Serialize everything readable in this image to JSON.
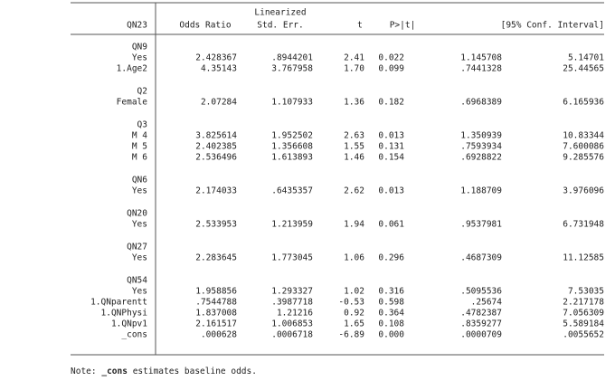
{
  "table": {
    "header": {
      "top": [
        "",
        "",
        "Linearized",
        "",
        "",
        "",
        ""
      ],
      "columns": [
        "QN23",
        "Odds Ratio",
        "Std. Err.",
        "t",
        "P>|t|",
        "[95% Conf. Interval]"
      ]
    },
    "groups": [
      {
        "label": "QN9",
        "rows": [
          [
            "Yes",
            "2.428367",
            ".8944201",
            "2.41",
            "0.022",
            "1.145708",
            "5.14701"
          ],
          [
            "1.Age2",
            "4.35143",
            "3.767958",
            "1.70",
            "0.099",
            ".7441328",
            "25.44565"
          ]
        ]
      },
      {
        "label": "Q2",
        "rows": [
          [
            "Female",
            "2.07284",
            "1.107933",
            "1.36",
            "0.182",
            ".6968389",
            "6.165936"
          ]
        ]
      },
      {
        "label": "Q3",
        "rows": [
          [
            "M 4",
            "3.825614",
            "1.952502",
            "2.63",
            "0.013",
            "1.350939",
            "10.83344"
          ],
          [
            "M 5",
            "2.402385",
            "1.356608",
            "1.55",
            "0.131",
            ".7593934",
            "7.600086"
          ],
          [
            "M 6",
            "2.536496",
            "1.613893",
            "1.46",
            "0.154",
            ".6928822",
            "9.285576"
          ]
        ]
      },
      {
        "label": "QN6",
        "rows": [
          [
            "Yes",
            "2.174033",
            ".6435357",
            "2.62",
            "0.013",
            "1.188709",
            "3.976096"
          ]
        ]
      },
      {
        "label": "QN20",
        "rows": [
          [
            "Yes",
            "2.533953",
            "1.213959",
            "1.94",
            "0.061",
            ".9537981",
            "6.731948"
          ]
        ]
      },
      {
        "label": "QN27",
        "rows": [
          [
            "Yes",
            "2.283645",
            "1.773045",
            "1.06",
            "0.296",
            ".4687309",
            "11.12585"
          ]
        ]
      },
      {
        "label": "QN54",
        "rows": [
          [
            "Yes",
            "1.958856",
            "1.293327",
            "1.02",
            "0.316",
            ".5095536",
            "7.53035"
          ],
          [
            "1.QNparentt",
            ".7544788",
            ".3987718",
            "-0.53",
            "0.598",
            ".25674",
            "2.217178"
          ],
          [
            "1.QNPhysi",
            "1.837008",
            "1.21216",
            "0.92",
            "0.364",
            ".4782387",
            "7.056309"
          ],
          [
            "1.QNpv1",
            "2.161517",
            "1.006853",
            "1.65",
            "0.108",
            ".8359277",
            "5.589184"
          ],
          [
            "_cons",
            ".000628",
            ".0006718",
            "-6.89",
            "0.000",
            ".0000709",
            ".0055652"
          ]
        ]
      }
    ]
  },
  "note": {
    "prefix": "Note:",
    "term": "_cons",
    "text": "estimates baseline odds."
  }
}
